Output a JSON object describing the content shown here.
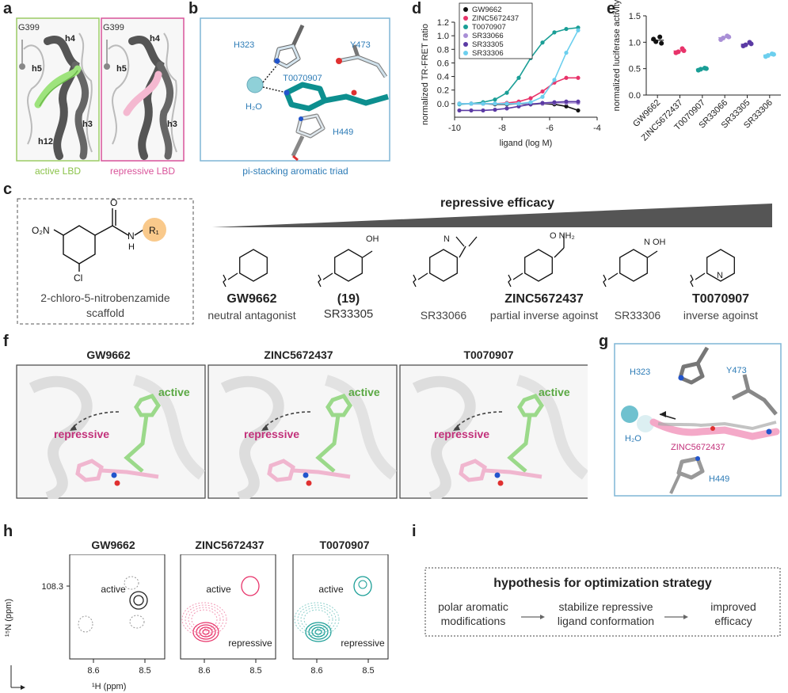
{
  "panels": {
    "a": "a",
    "b": "b",
    "c": "c",
    "d": "d",
    "e": "e",
    "f": "f",
    "g": "g",
    "h": "h",
    "i": "i"
  },
  "panel_a": {
    "left": {
      "res_label": "G399",
      "helices": [
        "h4",
        "h5",
        "h3",
        "h12"
      ],
      "caption": "active LBD"
    },
    "right": {
      "res_label": "G399",
      "helices": [
        "h4",
        "h5",
        "h3"
      ],
      "caption": "repressive LBD"
    }
  },
  "panel_b": {
    "residues": [
      "H323",
      "Y473",
      "T0070907",
      "H449"
    ],
    "water": "H₂O",
    "caption": "pi-stacking aromatic triad"
  },
  "panel_c": {
    "scaffold_caption": [
      "2-chloro-5-nitrobenzamide",
      "scaffold"
    ],
    "scaffold_atoms": {
      "o2n": "O₂N",
      "o": "O",
      "n": "N",
      "h": "H",
      "r": "R₁",
      "cl": "Cl"
    },
    "trend_title": "repressive efficacy",
    "compounds": [
      {
        "name": "GW9662",
        "sub": "neutral antagonist",
        "bold": true,
        "atoms": ""
      },
      {
        "name": "(19)",
        "sub": "SR33305",
        "bold": false,
        "atoms": "OH"
      },
      {
        "name": "",
        "sub": "SR33066",
        "bold": false,
        "atoms": "N"
      },
      {
        "name": "ZINC5672437",
        "sub": "partial inverse agoinst",
        "bold": true,
        "atoms": "O NH₂"
      },
      {
        "name": "",
        "sub": "SR33306",
        "bold": false,
        "atoms": "N OH"
      },
      {
        "name": "T0070907",
        "sub": "inverse agoinst",
        "bold": true,
        "atoms": "N"
      }
    ]
  },
  "panel_f": {
    "titles": [
      "GW9662",
      "ZINC5672437",
      "T0070907"
    ],
    "active": "active",
    "repressive": "repressive"
  },
  "panel_g": {
    "residues": [
      "H323",
      "Y473",
      "H449"
    ],
    "water": "H₂O",
    "ligand": "ZINC5672437"
  },
  "panel_h": {
    "titles": [
      "GW9662",
      "ZINC5672437",
      "T0070907"
    ],
    "ylabel": "¹⁵N (ppm)",
    "xlabel": "¹H (ppm)",
    "ytick": "108.3",
    "xticks": [
      "8.6",
      "8.5"
    ],
    "active": "active",
    "repressive": "repressive"
  },
  "panel_i": {
    "title": "hypothesis for optimization strategy",
    "steps": [
      [
        "polar aromatic",
        "modifications"
      ],
      [
        "stabilize repressive",
        "ligand conformation"
      ],
      [
        "improved",
        "efficacy"
      ]
    ]
  },
  "chart_data": [
    {
      "type": "scatter",
      "xlabel": "ligand (log M)",
      "ylabel": "normalized TR-FRET ratio",
      "xlim": [
        -10,
        -4
      ],
      "ylim": [
        -0.2,
        1.2
      ],
      "xticks": [
        -10,
        -8,
        -6,
        -4
      ],
      "yticks": [
        0.0,
        0.2,
        0.4,
        0.6,
        0.8,
        1.0,
        1.2
      ],
      "legend_position": "top-left",
      "series": [
        {
          "name": "GW9662",
          "color": "#111111",
          "x": [
            -9.8,
            -9.3,
            -8.8,
            -8.3,
            -7.8,
            -7.3,
            -6.8,
            -6.3,
            -5.8,
            -5.3,
            -4.8
          ],
          "y": [
            0.0,
            0.0,
            0.0,
            -0.01,
            -0.01,
            0.0,
            -0.01,
            0.0,
            -0.01,
            -0.04,
            -0.1
          ]
        },
        {
          "name": "ZINC5672437",
          "color": "#e8336a",
          "x": [
            -9.8,
            -9.3,
            -8.8,
            -8.3,
            -7.8,
            -7.3,
            -6.8,
            -6.3,
            -5.8,
            -5.3,
            -4.8
          ],
          "y": [
            0.0,
            0.0,
            0.0,
            0.0,
            0.01,
            0.03,
            0.08,
            0.18,
            0.31,
            0.38,
            0.38
          ]
        },
        {
          "name": "T0070907",
          "color": "#1a9e96",
          "x": [
            -9.8,
            -9.3,
            -8.8,
            -8.3,
            -7.8,
            -7.3,
            -6.8,
            -6.3,
            -5.8,
            -5.3,
            -4.8
          ],
          "y": [
            -0.01,
            0.0,
            0.02,
            0.06,
            0.16,
            0.38,
            0.67,
            0.9,
            1.05,
            1.1,
            1.12
          ]
        },
        {
          "name": "SR33066",
          "color": "#a98fd6",
          "x": [
            -9.8,
            -9.3,
            -8.8,
            -8.3,
            -7.8,
            -7.3,
            -6.8,
            -6.3,
            -5.8,
            -5.3,
            -4.8
          ],
          "y": [
            0.0,
            0.0,
            0.0,
            0.0,
            0.0,
            0.0,
            0.0,
            0.0,
            0.01,
            0.01,
            0.01
          ]
        },
        {
          "name": "SR33305",
          "color": "#5b3aa4",
          "x": [
            -9.8,
            -9.3,
            -8.8,
            -8.3,
            -7.8,
            -7.3,
            -6.8,
            -6.3,
            -5.8,
            -5.3,
            -4.8
          ],
          "y": [
            -0.1,
            -0.1,
            -0.1,
            -0.09,
            -0.07,
            -0.04,
            -0.01,
            0.01,
            0.02,
            0.03,
            0.03
          ]
        },
        {
          "name": "SR33306",
          "color": "#6ccfee",
          "x": [
            -9.8,
            -9.3,
            -8.8,
            -8.3,
            -7.8,
            -7.3,
            -6.8,
            -6.3,
            -5.8,
            -5.3,
            -4.8
          ],
          "y": [
            0.0,
            0.0,
            0.0,
            0.0,
            0.0,
            0.0,
            0.02,
            0.1,
            0.35,
            0.75,
            1.08
          ]
        }
      ]
    },
    {
      "type": "scatter",
      "ylabel": "normalized luciferase activity",
      "ylim": [
        0,
        1.5
      ],
      "yticks": [
        0.0,
        0.5,
        1.0,
        1.5
      ],
      "categories": [
        "GW9662",
        "ZINC5672437",
        "T0070907",
        "SR33066",
        "SR33305",
        "SR33306"
      ],
      "colors": [
        "#111111",
        "#e8336a",
        "#1a9e96",
        "#a98fd6",
        "#5b3aa4",
        "#6ccfee"
      ],
      "values": [
        [
          1.06,
          0.98,
          1.01,
          1.1
        ],
        [
          0.8,
          0.84,
          0.82,
          0.88
        ],
        [
          0.47,
          0.5,
          0.49,
          0.51
        ],
        [
          1.05,
          1.1,
          1.08,
          1.12
        ],
        [
          0.93,
          0.97,
          0.95,
          1.0
        ],
        [
          0.73,
          0.77,
          0.75,
          0.78
        ]
      ]
    }
  ]
}
